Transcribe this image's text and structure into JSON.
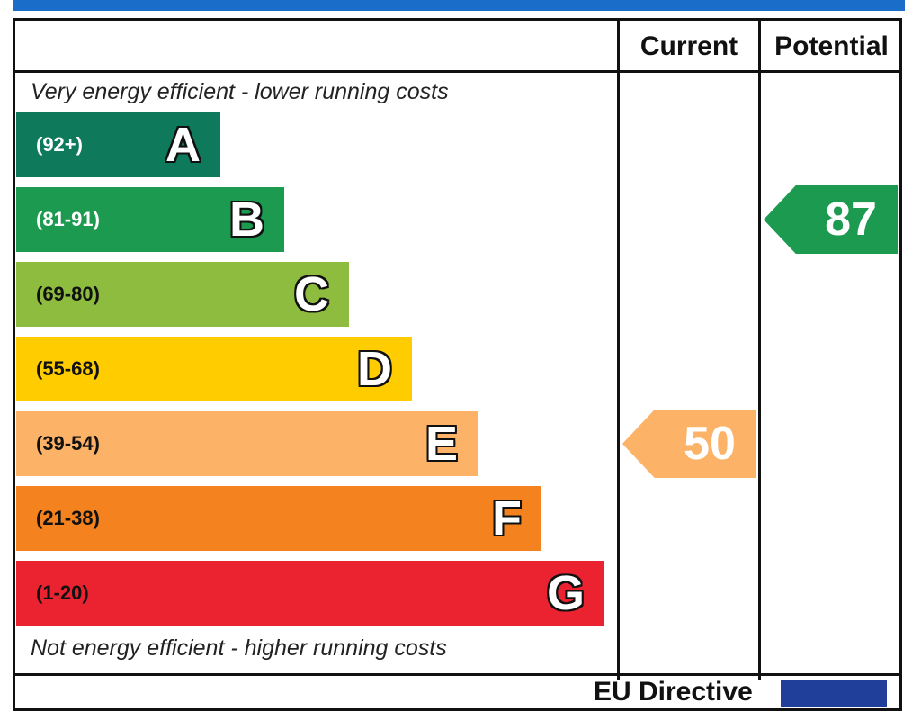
{
  "colors": {
    "top_bar": "#1a6dc9",
    "A": "#0f7a5b",
    "B": "#1c9a4f",
    "C": "#8dbc3f",
    "D": "#ffcc00",
    "E": "#fcb267",
    "F": "#f4821f",
    "G": "#eb2230",
    "range_text_dark": "#111111",
    "range_text_light": "#ffffff"
  },
  "headers": {
    "current": "Current",
    "potential": "Potential"
  },
  "top_caption": "Very energy efficient - lower running costs",
  "bottom_caption": "Not energy efficient - higher running costs",
  "footer_text": "EU Directive",
  "chart_data": {
    "type": "bar",
    "title": "",
    "categories": [
      "A",
      "B",
      "C",
      "D",
      "E",
      "F",
      "G"
    ],
    "ranges": [
      "(92+)",
      "(81-91)",
      "(69-80)",
      "(55-68)",
      "(39-54)",
      "(21-38)",
      "(1-20)"
    ],
    "min_scores": [
      92,
      81,
      69,
      55,
      39,
      21,
      1
    ],
    "current_rating": 50,
    "current_band": "E",
    "potential_rating": 87,
    "potential_band": "B"
  }
}
